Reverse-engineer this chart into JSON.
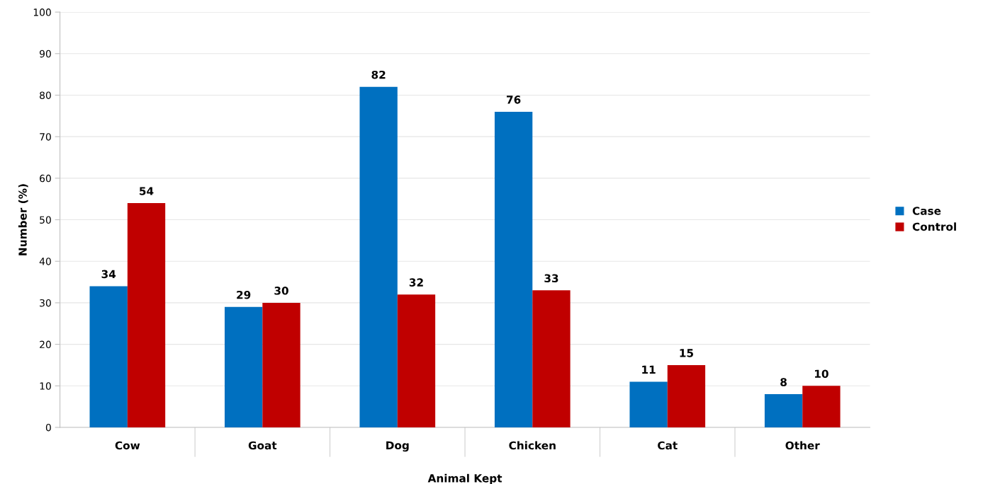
{
  "chart_data": {
    "type": "bar",
    "xlabel": "Animal Kept",
    "ylabel": "Number (%)",
    "categories": [
      "Cow",
      "Goat",
      "Dog",
      "Chicken",
      "Cat",
      "Other"
    ],
    "series": [
      {
        "name": "Case",
        "color": "#0070c0",
        "values": [
          34,
          29,
          82,
          76,
          11,
          8
        ]
      },
      {
        "name": "Control",
        "color": "#c00000",
        "values": [
          54,
          30,
          32,
          33,
          15,
          10
        ]
      }
    ],
    "ylim": [
      0,
      100
    ],
    "yticks": [
      0,
      10,
      20,
      30,
      40,
      50,
      60,
      70,
      80,
      90,
      100
    ],
    "grid": "y",
    "legend": "right",
    "data_labels": true
  }
}
